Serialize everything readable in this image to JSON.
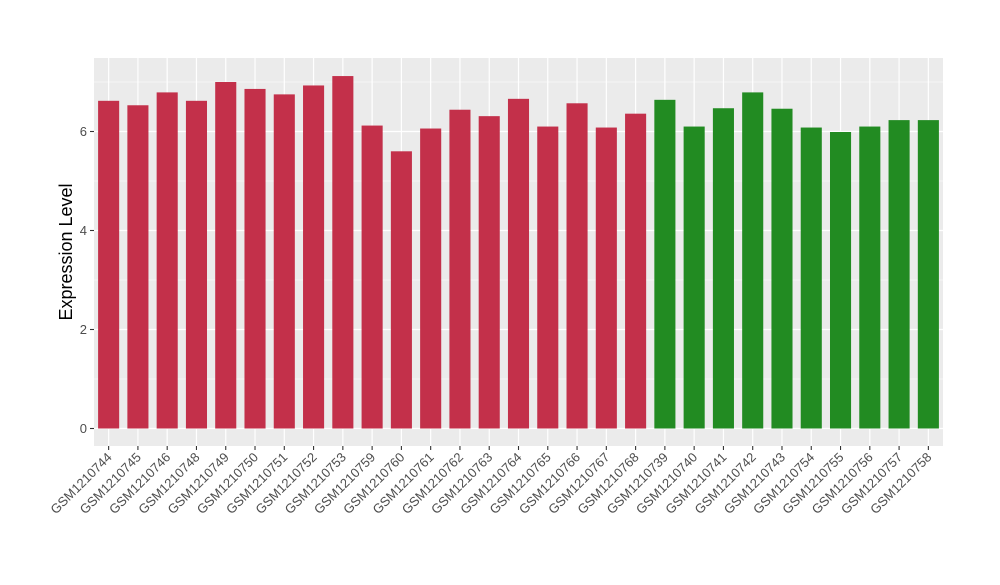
{
  "chart_data": {
    "type": "bar",
    "title": "",
    "xlabel": "",
    "ylabel": "Expression Level",
    "ylim": [
      0,
      7.35
    ],
    "yticks": [
      0,
      2,
      4,
      6
    ],
    "grid": true,
    "legend": "none",
    "categories": [
      "GSM1210744",
      "GSM1210745",
      "GSM1210746",
      "GSM1210748",
      "GSM1210749",
      "GSM1210750",
      "GSM1210751",
      "GSM1210752",
      "GSM1210753",
      "GSM1210759",
      "GSM1210760",
      "GSM1210761",
      "GSM1210762",
      "GSM1210763",
      "GSM1210764",
      "GSM1210765",
      "GSM1210766",
      "GSM1210767",
      "GSM1210768",
      "GSM1210739",
      "GSM1210740",
      "GSM1210741",
      "GSM1210742",
      "GSM1210743",
      "GSM1210754",
      "GSM1210755",
      "GSM1210756",
      "GSM1210757",
      "GSM1210758"
    ],
    "values": [
      6.62,
      6.53,
      6.79,
      6.62,
      7.0,
      6.86,
      6.75,
      6.93,
      7.12,
      6.12,
      5.6,
      6.06,
      6.44,
      6.31,
      6.66,
      6.1,
      6.57,
      6.08,
      6.36,
      6.64,
      6.1,
      6.47,
      6.79,
      6.46,
      6.08,
      5.99,
      6.1,
      6.23,
      6.23
    ],
    "bar_colors": [
      "#C3304A",
      "#C3304A",
      "#C3304A",
      "#C3304A",
      "#C3304A",
      "#C3304A",
      "#C3304A",
      "#C3304A",
      "#C3304A",
      "#C3304A",
      "#C3304A",
      "#C3304A",
      "#C3304A",
      "#C3304A",
      "#C3304A",
      "#C3304A",
      "#C3304A",
      "#C3304A",
      "#C3304A",
      "#228B22",
      "#228B22",
      "#228B22",
      "#228B22",
      "#228B22",
      "#228B22",
      "#228B22",
      "#228B22",
      "#228B22",
      "#228B22"
    ],
    "panel_background": "#EBEBEB",
    "grid_color": "#FFFFFF"
  }
}
